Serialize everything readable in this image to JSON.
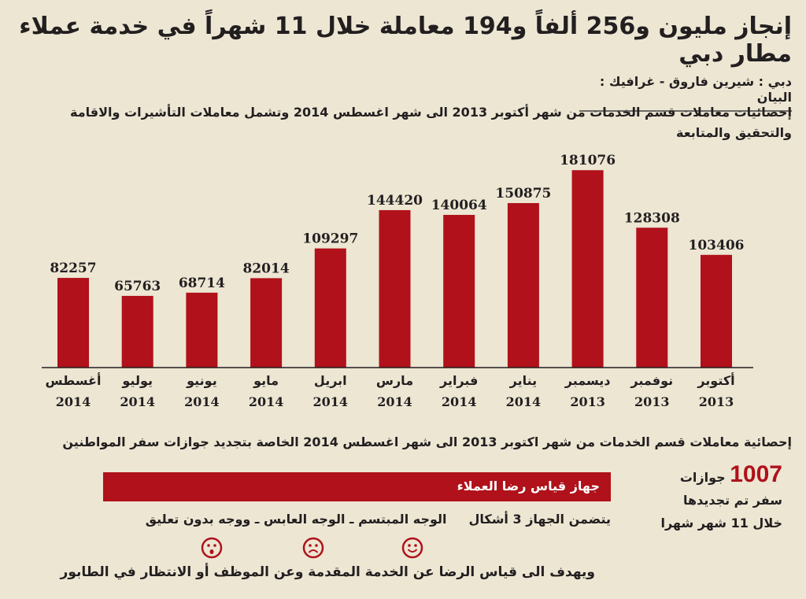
{
  "title": "إنجاز مليون و256 ألفاً و194 معاملة خلال 11 شهراً في خدمة عملاء مطار دبي",
  "byline": "دبي : شيرين فاروق - غرافيك : البيان",
  "subtitle": "إحصائيات معاملات قسم الخدمات من شهر أكتوبر 2013 الى شهر اغسطس 2014 وتشمل معاملات التأشيرات والاقامة والتحقيق والمتابعة",
  "colors": {
    "bar": "#b0111a",
    "background": "#ece6d3",
    "text": "#231f20"
  },
  "chart_data": {
    "type": "bar",
    "x_direction": "right-to-left",
    "categories": [
      {
        "month": "أكتوبر",
        "year": "2013"
      },
      {
        "month": "نوفمبر",
        "year": "2013"
      },
      {
        "month": "ديسمبر",
        "year": "2013"
      },
      {
        "month": "يناير",
        "year": "2014"
      },
      {
        "month": "فبراير",
        "year": "2014"
      },
      {
        "month": "مارس",
        "year": "2014"
      },
      {
        "month": "ابريل",
        "year": "2014"
      },
      {
        "month": "مايو",
        "year": "2014"
      },
      {
        "month": "يونيو",
        "year": "2014"
      },
      {
        "month": "يوليو",
        "year": "2014"
      },
      {
        "month": "أغسطس",
        "year": "2014"
      }
    ],
    "values": [
      103406,
      128308,
      181076,
      150875,
      140064,
      144420,
      109297,
      82014,
      68714,
      65763,
      82257
    ],
    "value_labels": [
      "103406",
      "128308",
      "181076",
      "150875",
      "140064",
      "144420",
      "109297",
      "82014",
      "68714",
      "65763",
      "82257"
    ],
    "ylim": [
      0,
      200000
    ],
    "grid": false,
    "y_axis_shown": false
  },
  "passport": {
    "heading": "إحصائية معاملات قسم الخدمات من شهر اكتوبر 2013 الى شهر اغسطس 2014 الخاصة بتجديد جوازات سفر المواطنين",
    "number": "1007",
    "line1": "جوازات",
    "line2": "سفر تم تجديدها",
    "line3": "خلال 11 شهر شهرا"
  },
  "device": {
    "banner": "جهاز قياس رضا العملاء",
    "intro": "يتضمن الجهاز 3 أشكال",
    "faces_desc": "الوجه المبتسم ـ الوجه العابس ـ ووجه بدون تعليق",
    "faces": [
      "smiley-face",
      "sad-face",
      "no-comment-face"
    ],
    "purpose": "ويهدف الى قياس الرضا عن الخدمة المقدمة وعن الموظف أو الانتظار في الطابور"
  }
}
